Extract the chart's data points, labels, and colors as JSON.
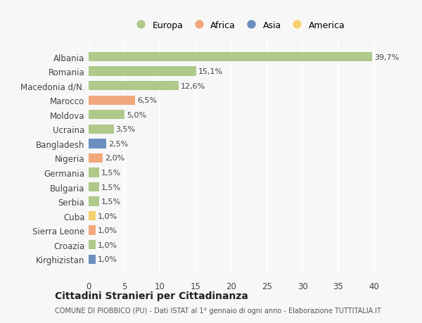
{
  "categories": [
    "Albania",
    "Romania",
    "Macedonia d/N.",
    "Marocco",
    "Moldova",
    "Ucraina",
    "Bangladesh",
    "Nigeria",
    "Germania",
    "Bulgaria",
    "Serbia",
    "Cuba",
    "Sierra Leone",
    "Croazia",
    "Kirghizistan"
  ],
  "values": [
    39.7,
    15.1,
    12.6,
    6.5,
    5.0,
    3.5,
    2.5,
    2.0,
    1.5,
    1.5,
    1.5,
    1.0,
    1.0,
    1.0,
    1.0
  ],
  "labels": [
    "39,7%",
    "15,1%",
    "12,6%",
    "6,5%",
    "5,0%",
    "3,5%",
    "2,5%",
    "2,0%",
    "1,5%",
    "1,5%",
    "1,5%",
    "1,0%",
    "1,0%",
    "1,0%",
    "1,0%"
  ],
  "continents": [
    "Europa",
    "Europa",
    "Europa",
    "Africa",
    "Europa",
    "Europa",
    "Asia",
    "Africa",
    "Europa",
    "Europa",
    "Europa",
    "America",
    "Africa",
    "Europa",
    "Asia"
  ],
  "colors": {
    "Europa": "#aec98a",
    "Africa": "#f0a87c",
    "Asia": "#6b8ebf",
    "America": "#f5d06e"
  },
  "legend_entries": [
    "Europa",
    "Africa",
    "Asia",
    "America"
  ],
  "legend_colors": [
    "#aec98a",
    "#f0a87c",
    "#6b8ebf",
    "#f5d06e"
  ],
  "title": "Cittadini Stranieri per Cittadinanza",
  "subtitle": "COMUNE DI PIOBBICO (PU) - Dati ISTAT al 1° gennaio di ogni anno - Elaborazione TUTTITALIA.IT",
  "xlim": [
    0,
    42
  ],
  "xticks": [
    0,
    5,
    10,
    15,
    20,
    25,
    30,
    35,
    40
  ],
  "bg_color": "#f7f7f7",
  "grid_color": "#ffffff",
  "bar_height": 0.65,
  "label_fontsize": 8,
  "ytick_fontsize": 8.5,
  "xtick_fontsize": 8.5
}
